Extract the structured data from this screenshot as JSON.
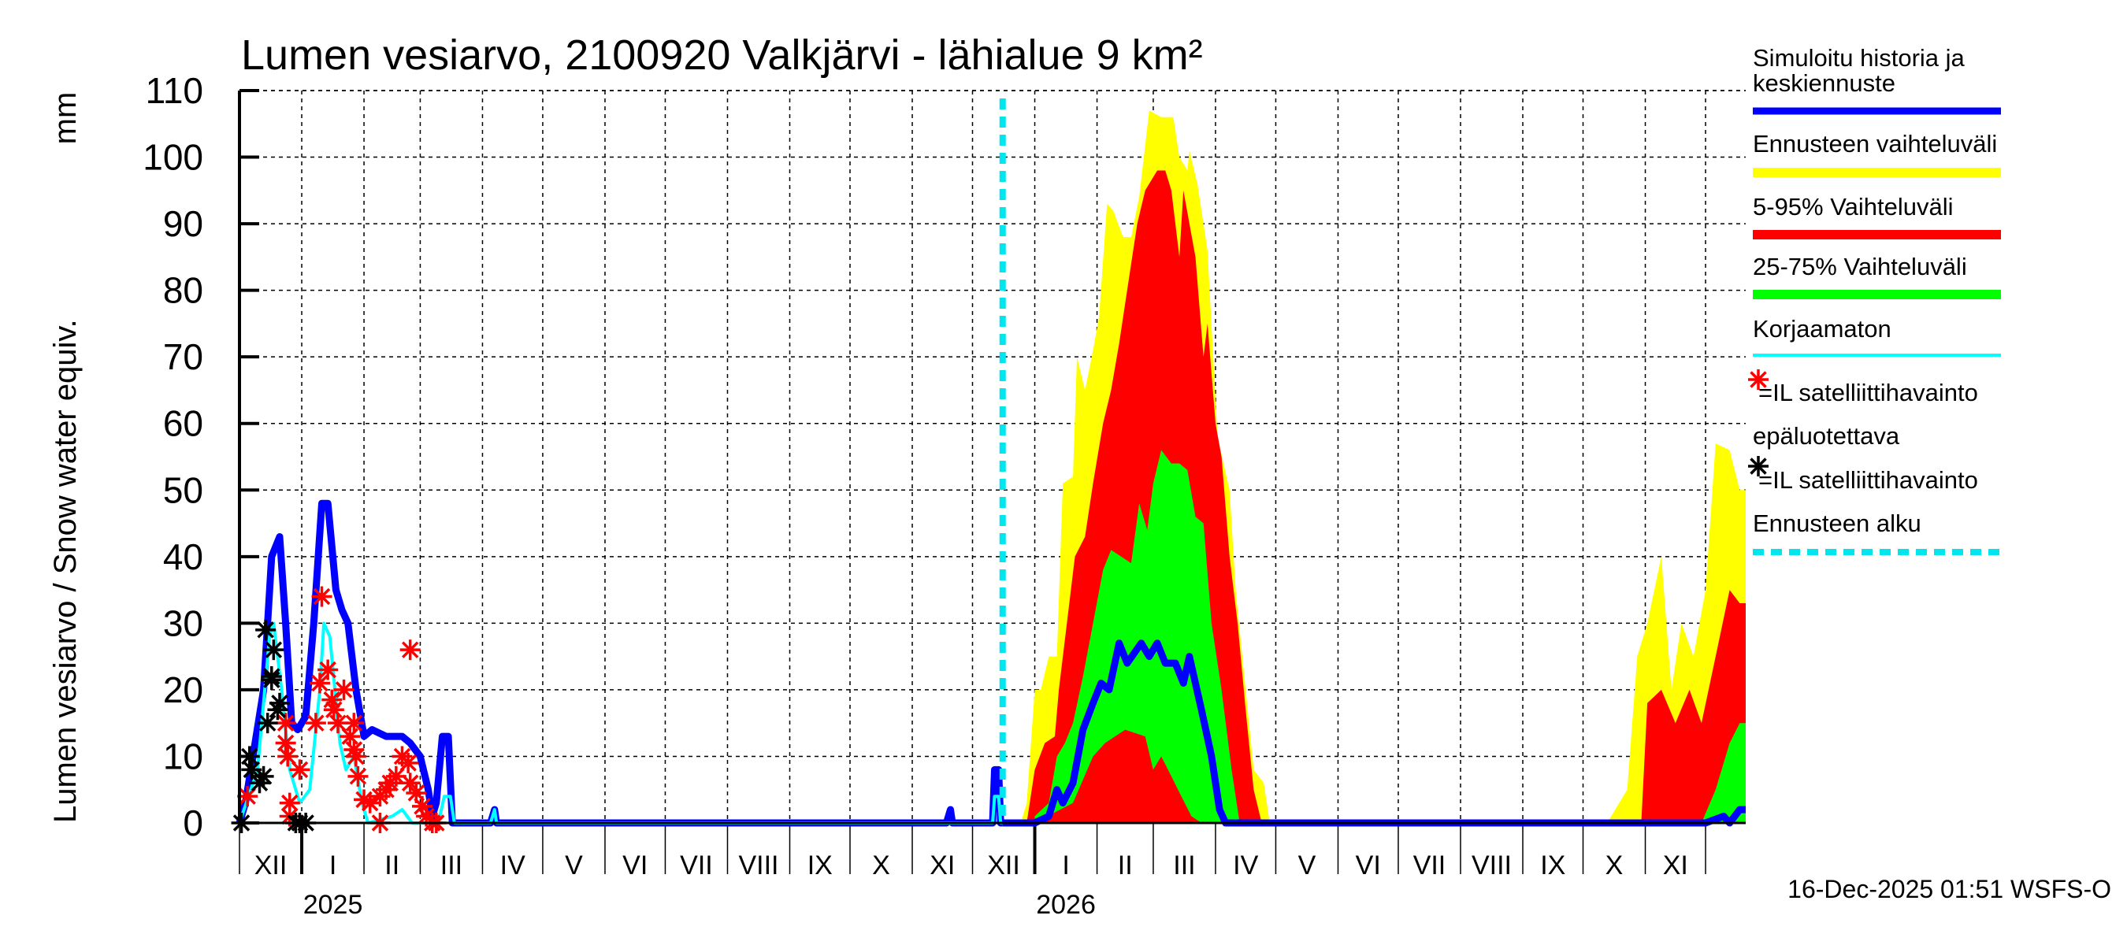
{
  "chart_data": {
    "type": "area",
    "title": "Lumen vesiarvo, 2100920 Valkjärvi - lähialue 9 km²",
    "ylabel": "Lumen vesiarvo / Snow water equiv.",
    "yunit": "mm",
    "xlim": [
      "2024-12-01",
      "2026-12-21"
    ],
    "ylim": [
      0,
      110
    ],
    "yticks": [
      0,
      10,
      20,
      30,
      40,
      50,
      60,
      70,
      80,
      90,
      100,
      110
    ],
    "grid": true,
    "legend_position": "right",
    "month_labels": [
      "XII",
      "I",
      "II",
      "III",
      "IV",
      "V",
      "VI",
      "VII",
      "VIII",
      "IX",
      "X",
      "XI",
      "XII",
      "I",
      "II",
      "III",
      "IV",
      "V",
      "VI",
      "VII",
      "VIII",
      "IX",
      "X",
      "XI"
    ],
    "year_labels": [
      {
        "label": "2025",
        "month": "2025-01"
      },
      {
        "label": "2026",
        "month": "2026-01"
      }
    ],
    "forecast_start": "2025-12-16",
    "colors": {
      "history": "#0000ff",
      "range": "#ffff00",
      "p5_95": "#ff0000",
      "p25_75": "#00ff00",
      "uncorrected": "#00ffff",
      "obs": "#ff0000",
      "obs_unreliable": "#000000",
      "forecast_start": "#00e5ee"
    },
    "series": {
      "range_max": [
        [
          "2025-12-25",
          0
        ],
        [
          "2025-12-28",
          3
        ],
        [
          "2026-01-01",
          20
        ],
        [
          "2026-01-04",
          20
        ],
        [
          "2026-01-08",
          25
        ],
        [
          "2026-01-12",
          25
        ],
        [
          "2026-01-15",
          51
        ],
        [
          "2026-01-20",
          52
        ],
        [
          "2026-01-22",
          70
        ],
        [
          "2026-01-26",
          65
        ],
        [
          "2026-01-30",
          71
        ],
        [
          "2026-02-02",
          76
        ],
        [
          "2026-02-06",
          93
        ],
        [
          "2026-02-09",
          92
        ],
        [
          "2026-02-14",
          88
        ],
        [
          "2026-02-18",
          88
        ],
        [
          "2026-02-22",
          94
        ],
        [
          "2026-02-27",
          107
        ],
        [
          "2026-03-05",
          106
        ],
        [
          "2026-03-11",
          106
        ],
        [
          "2026-03-14",
          100
        ],
        [
          "2026-03-18",
          98
        ],
        [
          "2026-03-19",
          101
        ],
        [
          "2026-03-23",
          96
        ],
        [
          "2026-03-28",
          86
        ],
        [
          "2026-04-02",
          58
        ],
        [
          "2026-04-08",
          50
        ],
        [
          "2026-04-11",
          35
        ],
        [
          "2026-04-16",
          20
        ],
        [
          "2026-04-20",
          8
        ],
        [
          "2026-04-25",
          6
        ],
        [
          "2026-04-28",
          0
        ],
        [
          "2026-10-13",
          0
        ],
        [
          "2026-10-23",
          5
        ],
        [
          "2026-10-28",
          25
        ],
        [
          "2026-11-02",
          30
        ],
        [
          "2026-11-09",
          40
        ],
        [
          "2026-11-14",
          20
        ],
        [
          "2026-11-19",
          30
        ],
        [
          "2026-11-25",
          25
        ],
        [
          "2026-12-01",
          35
        ],
        [
          "2026-12-06",
          57
        ],
        [
          "2026-12-13",
          56
        ],
        [
          "2026-12-18",
          50
        ],
        [
          "2026-12-21",
          50
        ]
      ],
      "p95": [
        [
          "2025-12-28",
          0
        ],
        [
          "2026-01-01",
          8
        ],
        [
          "2026-01-06",
          12
        ],
        [
          "2026-01-11",
          13
        ],
        [
          "2026-01-13",
          20
        ],
        [
          "2026-01-17",
          30
        ],
        [
          "2026-01-21",
          40
        ],
        [
          "2026-01-26",
          43
        ],
        [
          "2026-01-30",
          51
        ],
        [
          "2026-02-04",
          60
        ],
        [
          "2026-02-08",
          65
        ],
        [
          "2026-02-12",
          72
        ],
        [
          "2026-02-16",
          80
        ],
        [
          "2026-02-21",
          90
        ],
        [
          "2026-02-25",
          95
        ],
        [
          "2026-03-03",
          98
        ],
        [
          "2026-03-07",
          98
        ],
        [
          "2026-03-10",
          95
        ],
        [
          "2026-03-14",
          85
        ],
        [
          "2026-03-16",
          95
        ],
        [
          "2026-03-22",
          85
        ],
        [
          "2026-03-26",
          70
        ],
        [
          "2026-03-28",
          75
        ],
        [
          "2026-04-01",
          60
        ],
        [
          "2026-04-04",
          55
        ],
        [
          "2026-04-08",
          40
        ],
        [
          "2026-04-12",
          30
        ],
        [
          "2026-04-16",
          17
        ],
        [
          "2026-04-20",
          5
        ],
        [
          "2026-04-24",
          0
        ],
        [
          "2026-10-30",
          0
        ],
        [
          "2026-11-02",
          18
        ],
        [
          "2026-11-09",
          20
        ],
        [
          "2026-11-16",
          15
        ],
        [
          "2026-11-23",
          20
        ],
        [
          "2026-11-29",
          15
        ],
        [
          "2026-12-06",
          25
        ],
        [
          "2026-12-13",
          35
        ],
        [
          "2026-12-18",
          33
        ],
        [
          "2026-12-21",
          33
        ]
      ],
      "p75": [
        [
          "2026-01-01",
          1
        ],
        [
          "2026-01-08",
          3
        ],
        [
          "2026-01-12",
          10
        ],
        [
          "2026-01-16",
          12
        ],
        [
          "2026-01-20",
          15
        ],
        [
          "2026-01-25",
          22
        ],
        [
          "2026-01-30",
          30
        ],
        [
          "2026-02-04",
          38
        ],
        [
          "2026-02-08",
          41
        ],
        [
          "2026-02-13",
          40
        ],
        [
          "2026-02-18",
          39
        ],
        [
          "2026-02-22",
          48
        ],
        [
          "2026-02-26",
          44
        ],
        [
          "2026-03-01",
          51
        ],
        [
          "2026-03-05",
          56
        ],
        [
          "2026-03-10",
          54
        ],
        [
          "2026-03-14",
          54
        ],
        [
          "2026-03-18",
          53
        ],
        [
          "2026-03-22",
          46
        ],
        [
          "2026-03-26",
          45
        ],
        [
          "2026-03-30",
          30
        ],
        [
          "2026-04-04",
          20
        ],
        [
          "2026-04-09",
          8
        ],
        [
          "2026-04-13",
          0
        ],
        [
          "2026-11-29",
          0
        ],
        [
          "2026-12-06",
          5
        ],
        [
          "2026-12-13",
          12
        ],
        [
          "2026-12-18",
          15
        ],
        [
          "2026-12-21",
          15
        ]
      ],
      "p25": [
        [
          "2026-01-01",
          0
        ],
        [
          "2026-01-20",
          3
        ],
        [
          "2026-01-30",
          10
        ],
        [
          "2026-02-05",
          12
        ],
        [
          "2026-02-15",
          14
        ],
        [
          "2026-02-25",
          13
        ],
        [
          "2026-03-01",
          8
        ],
        [
          "2026-03-05",
          10
        ],
        [
          "2026-03-10",
          7
        ],
        [
          "2026-03-15",
          4
        ],
        [
          "2026-03-20",
          1
        ],
        [
          "2026-03-25",
          0
        ]
      ],
      "history": [
        [
          "2024-12-01",
          0
        ],
        [
          "2024-12-04",
          3
        ],
        [
          "2024-12-13",
          20
        ],
        [
          "2024-12-17",
          40
        ],
        [
          "2024-12-21",
          43
        ],
        [
          "2024-12-24",
          30
        ],
        [
          "2024-12-27",
          15
        ],
        [
          "2024-12-30",
          14
        ],
        [
          "2025-01-03",
          16
        ],
        [
          "2025-01-07",
          30
        ],
        [
          "2025-01-11",
          48
        ],
        [
          "2025-01-14",
          48
        ],
        [
          "2025-01-18",
          35
        ],
        [
          "2025-01-21",
          32
        ],
        [
          "2025-01-24",
          30
        ],
        [
          "2025-01-28",
          20
        ],
        [
          "2025-02-01",
          13
        ],
        [
          "2025-02-05",
          14
        ],
        [
          "2025-02-12",
          13
        ],
        [
          "2025-02-20",
          13
        ],
        [
          "2025-02-24",
          12
        ],
        [
          "2025-03-01",
          10
        ],
        [
          "2025-03-05",
          5
        ],
        [
          "2025-03-07",
          1
        ],
        [
          "2025-03-09",
          3
        ],
        [
          "2025-03-12",
          13
        ],
        [
          "2025-03-15",
          13
        ],
        [
          "2025-03-17",
          0
        ],
        [
          "2025-04-05",
          0
        ],
        [
          "2025-04-07",
          2
        ],
        [
          "2025-04-08",
          0
        ],
        [
          "2025-11-18",
          0
        ],
        [
          "2025-11-20",
          2
        ],
        [
          "2025-11-21",
          0
        ],
        [
          "2025-12-11",
          0
        ],
        [
          "2025-12-12",
          8
        ],
        [
          "2025-12-14",
          8
        ],
        [
          "2025-12-15",
          0
        ],
        [
          "2025-12-16",
          0
        ]
      ],
      "median": [
        [
          "2025-12-16",
          0
        ],
        [
          "2026-01-01",
          0
        ],
        [
          "2026-01-08",
          1
        ],
        [
          "2026-01-12",
          5
        ],
        [
          "2026-01-15",
          3
        ],
        [
          "2026-01-20",
          6
        ],
        [
          "2026-01-25",
          14
        ],
        [
          "2026-01-30",
          18
        ],
        [
          "2026-02-03",
          21
        ],
        [
          "2026-02-07",
          20
        ],
        [
          "2026-02-12",
          27
        ],
        [
          "2026-02-16",
          24
        ],
        [
          "2026-02-23",
          27
        ],
        [
          "2026-02-27",
          25
        ],
        [
          "2026-03-03",
          27
        ],
        [
          "2026-03-07",
          24
        ],
        [
          "2026-03-12",
          24
        ],
        [
          "2026-03-16",
          21
        ],
        [
          "2026-03-19",
          25
        ],
        [
          "2026-03-25",
          17
        ],
        [
          "2026-03-30",
          10
        ],
        [
          "2026-04-03",
          2
        ],
        [
          "2026-04-06",
          0
        ],
        [
          "2026-12-01",
          0
        ],
        [
          "2026-12-10",
          1
        ],
        [
          "2026-12-13",
          0
        ],
        [
          "2026-12-18",
          2
        ],
        [
          "2026-12-21",
          2
        ]
      ],
      "uncorrected": [
        [
          "2024-12-01",
          0
        ],
        [
          "2024-12-10",
          8
        ],
        [
          "2024-12-16",
          28
        ],
        [
          "2024-12-18",
          30
        ],
        [
          "2024-12-22",
          20
        ],
        [
          "2024-12-26",
          8
        ],
        [
          "2024-12-31",
          3
        ],
        [
          "2025-01-05",
          5
        ],
        [
          "2025-01-10",
          20
        ],
        [
          "2025-01-12",
          30
        ],
        [
          "2025-01-15",
          28
        ],
        [
          "2025-01-20",
          12
        ],
        [
          "2025-01-23",
          8
        ],
        [
          "2025-01-27",
          10
        ],
        [
          "2025-01-31",
          3
        ],
        [
          "2025-02-03",
          0
        ],
        [
          "2025-02-15",
          1
        ],
        [
          "2025-02-20",
          2
        ],
        [
          "2025-02-25",
          0
        ],
        [
          "2025-03-10",
          0
        ],
        [
          "2025-03-13",
          4
        ],
        [
          "2025-03-16",
          4
        ],
        [
          "2025-03-18",
          0
        ],
        [
          "2025-04-05",
          0
        ],
        [
          "2025-04-07",
          2
        ],
        [
          "2025-04-08",
          0
        ],
        [
          "2025-12-11",
          0
        ],
        [
          "2025-12-12",
          4
        ],
        [
          "2025-12-14",
          4
        ],
        [
          "2025-12-15",
          0
        ],
        [
          "2025-12-16",
          0
        ]
      ],
      "obs": [
        [
          "2024-12-05",
          4
        ],
        [
          "2025-01-11",
          34
        ],
        [
          "2025-02-24",
          26
        ],
        [
          "2025-01-14",
          23
        ],
        [
          "2025-01-10",
          21
        ],
        [
          "2025-01-22",
          20
        ],
        [
          "2025-01-16",
          18.5
        ],
        [
          "2024-12-24",
          15
        ],
        [
          "2025-01-08",
          15
        ],
        [
          "2025-01-19",
          15
        ],
        [
          "2025-01-27",
          15
        ],
        [
          "2024-12-24",
          12
        ],
        [
          "2024-12-25",
          10
        ],
        [
          "2024-12-31",
          8
        ],
        [
          "2024-12-26",
          3
        ],
        [
          "2024-12-26",
          1
        ],
        [
          "2025-01-27",
          11
        ],
        [
          "2025-01-28",
          10
        ],
        [
          "2025-01-29",
          7
        ],
        [
          "2025-02-01",
          3.5
        ],
        [
          "2025-02-04",
          3
        ],
        [
          "2025-02-09",
          0
        ],
        [
          "2025-02-09",
          4
        ],
        [
          "2025-02-14",
          6
        ],
        [
          "2025-02-20",
          10
        ],
        [
          "2025-02-23",
          9
        ],
        [
          "2025-02-24",
          6
        ],
        [
          "2025-02-27",
          4.5
        ],
        [
          "2025-03-02",
          2.5
        ],
        [
          "2025-03-04",
          1
        ],
        [
          "2025-03-07",
          0
        ],
        [
          "2025-03-09",
          0
        ],
        [
          "2025-02-12",
          5
        ],
        [
          "2025-02-17",
          7
        ],
        [
          "2025-01-25",
          13
        ],
        [
          "2025-01-17",
          17
        ]
      ],
      "obs_unreliable": [
        [
          "2024-12-02",
          0
        ],
        [
          "2024-12-06",
          10
        ],
        [
          "2024-12-07",
          8
        ],
        [
          "2024-12-11",
          6
        ],
        [
          "2024-12-13",
          7
        ],
        [
          "2024-12-14",
          29
        ],
        [
          "2024-12-18",
          26
        ],
        [
          "2024-12-17",
          22
        ],
        [
          "2024-12-17",
          21.5
        ],
        [
          "2024-12-21",
          18
        ],
        [
          "2024-12-20",
          17
        ],
        [
          "2024-12-15",
          15
        ],
        [
          "2024-12-31",
          0
        ],
        [
          "2024-12-29",
          0
        ],
        [
          "2025-01-03",
          0
        ]
      ]
    },
    "legend": [
      {
        "label": "Simuloitu historia ja keskiennuste",
        "lines": [
          "Simuloitu historia ja",
          "keskiennuste"
        ],
        "key": "history"
      },
      {
        "label": "Ennusteen vaihteluväli",
        "key": "range"
      },
      {
        "label": "5-95% Vaihteluväli",
        "key": "p5_95"
      },
      {
        "label": "25-75% Vaihteluväli",
        "key": "p25_75"
      },
      {
        "label": "Korjaamaton",
        "key": "uncorrected"
      },
      {
        "label": "=IL satelliittihavainto",
        "key": "obs"
      },
      {
        "label": "epäluotettava",
        "key": "obs_unreliable_title"
      },
      {
        "label": "=IL satelliittihavainto",
        "key": "obs_unreliable"
      },
      {
        "label": "Ennusteen alku",
        "key": "forecast_start"
      }
    ]
  },
  "footer": {
    "timestamp": "16-Dec-2025 01:51 WSFS-O"
  }
}
